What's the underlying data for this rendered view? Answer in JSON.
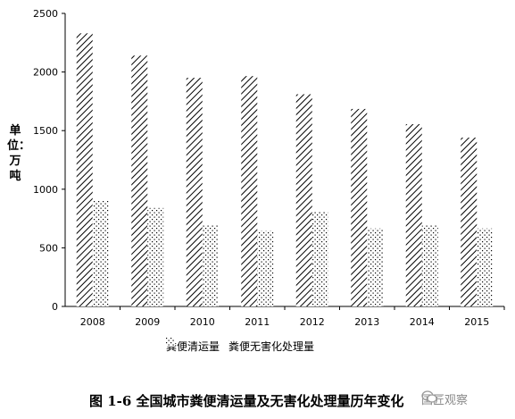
{
  "chart_data": {
    "type": "bar",
    "categories": [
      "2008",
      "2009",
      "2010",
      "2011",
      "2012",
      "2013",
      "2014",
      "2015"
    ],
    "series": [
      {
        "name": "粪便清运量",
        "values": [
          2330,
          2140,
          1950,
          1965,
          1810,
          1685,
          1555,
          1440
        ],
        "pattern": "diagonal-hatch"
      },
      {
        "name": "粪便无害化处理量",
        "values": [
          900,
          840,
          690,
          645,
          805,
          665,
          690,
          665
        ],
        "pattern": "dots"
      }
    ],
    "ylabel": "单位：万吨",
    "ylim": [
      0,
      2500
    ],
    "yticks": [
      0,
      500,
      1000,
      1500,
      2000,
      2500
    ],
    "grid": false,
    "legend_position": "bottom"
  },
  "caption": "图 1-6 全国城市粪便清运量及无害化处理量历年变化",
  "watermark": "国匠观察"
}
